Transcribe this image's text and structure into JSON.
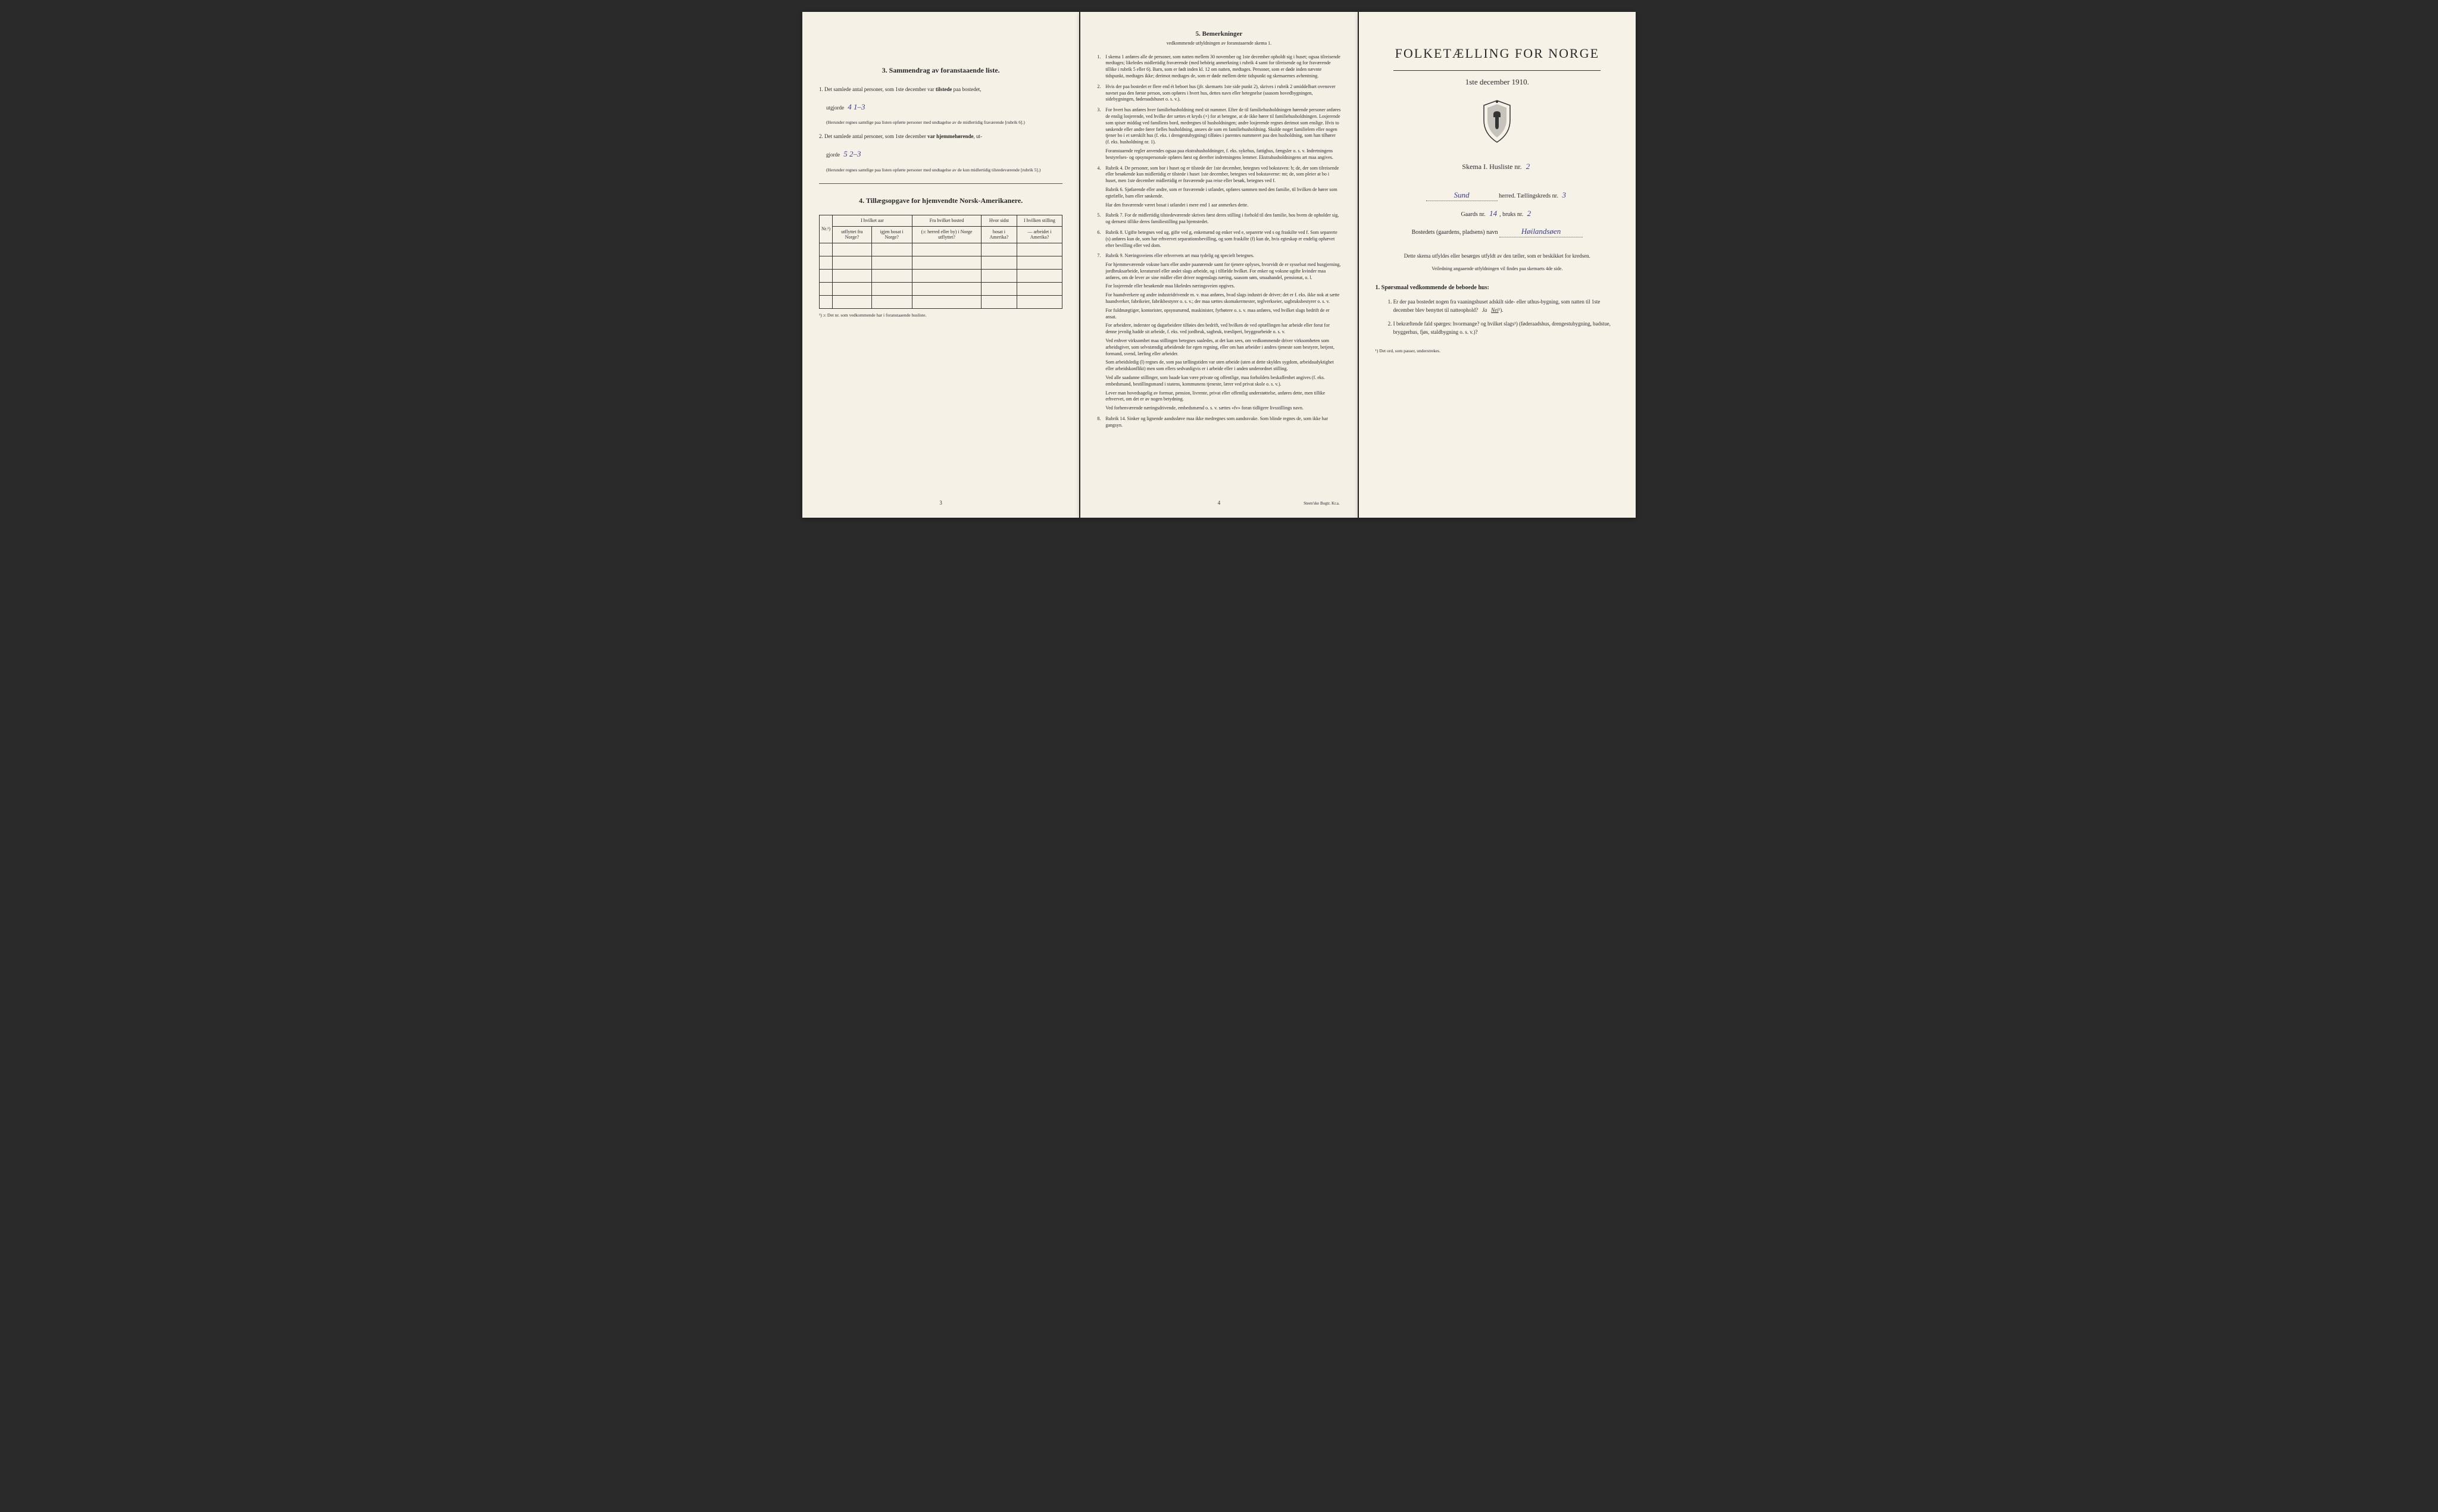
{
  "page_left": {
    "section3": {
      "title": "3.   Sammendrag av foranstaaende liste.",
      "item1_prefix": "1.  Det samlede antal personer, som 1ste december var ",
      "item1_bold": "tilstede",
      "item1_suffix": " paa bostedet,",
      "item1_line2": "utgjorde",
      "item1_value": "4     1–3",
      "item1_note": "(Herunder regnes samtlige paa listen opførte personer med undtagelse av de midlertidig fraværende [rubrik 6].)",
      "item2_prefix": "2.  Det samlede antal personer, som 1ste december ",
      "item2_bold": "var hjemmehørende",
      "item2_suffix": ", ut-",
      "item2_line2": "gjorde",
      "item2_value": "5     2–3",
      "item2_note": "(Herunder regnes samtlige paa listen opførte personer med undtagelse av de kun midlertidig tilstedeværende [rubrik 5].)"
    },
    "section4": {
      "title": "4.   Tillægsopgave for hjemvendte Norsk-Amerikanere.",
      "headers": {
        "nr": "Nr.¹)",
        "col1_top": "I hvilket aar",
        "col1a": "utflyttet fra Norge?",
        "col1b": "igjen bosat i Norge?",
        "col2_top": "Fra hvilket bosted",
        "col2": "(ɔ: herred eller by) i Norge utflyttet?",
        "col3_top": "Hvor sidst",
        "col3": "bosat i Amerika?",
        "col4_top": "I hvilken stilling",
        "col4": "— arbeidet i Amerika?"
      },
      "footnote": "¹)  ɔ: Det nr. som vedkommende har i foranstaaende husliste."
    },
    "page_number": "3"
  },
  "page_center": {
    "title": "5.   Bemerkninger",
    "subtitle": "vedkommende utfyldningen av foranstaaende skema 1.",
    "remarks": [
      {
        "num": "1.",
        "text": "I skema 1 anføres alle de personer, som natten mellem 30 november og 1ste december opholdt sig i huset; ogsaa tilreisende medtages; likeledes midlertidig fraværende (med behörig anmerkning i rubrik 4 samt for tilreisende og for fraværende tillike i rubrik 5 eller 6). Barn, som er født inden kl. 12 om natten, medtages. Personer, som er døde inden nævnte tidspunkt, medtages ikke; derimot medtages de, som er døde mellem dette tidspunkt og skemaernes avhentning."
      },
      {
        "num": "2.",
        "text": "Hvis der paa bostedet er flere end ét beboet hus (jfr. skemaets 1ste side punkt 2), skrives i rubrik 2 umiddelbart ovenover navnet paa den første person, som opføres i hvert hus, dettes navn eller betegnelse (saasom hovedbygningen, sidebygningen, føderaadshuset o. s. v.)."
      },
      {
        "num": "3.",
        "text": "For hvert hus anføres hver familiehusholdning med sit nummer. Efter de til familiehusholdningen hørende personer anføres de enslig losjerende, ved hvilke der sættes et kryds (×) for at betegne, at de ikke hører til familiehusholdningen. Losjerende som spiser middag ved familiens bord, medregnes til husholdningen; andre losjerende regnes derimot som enslige. Hvis to søskende eller andre fører fælles husholdning, ansees de som en familiehusholdning. Skulde noget familielem eller nogen tjener bo i et særskilt hus (f. eks. i drengestubygning) tilføies i parentes nummeret paa den husholdning, som han tilhører (f. eks. husholdning nr. 1).",
        "extra": "Foranstaaende regler anvendes ogsaa paa ekstrahusholdninger, f. eks. sykehus, fattighus, fængsler o. s. v. Indretningens bestyrelses- og opsynspersonale opføres først og derefter indretningens lemmer. Ekstrahusholdningens art maa angives."
      },
      {
        "num": "4.",
        "text": "Rubrik 4. De personer, som bor i huset og er tilstede der 1ste december, betegnes ved bokstaven: b; de, der som tilreisende eller besøkende kun midlertidig er tilstede i huset 1ste december, betegnes ved bokstaverne: mt; de, som pleier at bo i huset, men 1ste december midlertidig er fraværende paa reise eller besøk, betegnes ved f.",
        "extra": "Rubrik 6. Sjøfarende eller andre, som er fraværende i utlandet, opføres sammen med den familie, til hvilken de hører som egtefælle, barn eller søskende.\nHar den fraværende været bosat i utlandet i mere end 1 aar anmerkes dette."
      },
      {
        "num": "5.",
        "text": "Rubrik 7. For de midlertidig tilstedeværende skrives først deres stilling i forhold til den familie, hos hvem de opholder sig, og dernæst tillike deres familiestilling paa hjemstedet."
      },
      {
        "num": "6.",
        "text": "Rubrik 8. Ugifte betegnes ved ug, gifte ved g, enkemænd og enker ved e, separerte ved s og fraskilte ved f. Som separerte (s) anføres kun de, som har erhvervet separationsbevilling, og som fraskilte (f) kun de, hvis egteskap er endelig ophævet efter bevilling eller ved dom."
      },
      {
        "num": "7.",
        "text": "Rubrik 9. Næringsveiens eller erhvervets art maa tydelig og specielt betegnes.",
        "extra": "For hjemmeværende voksne barn eller andre paarørende samt for tjenere oplyses, hvorvidt de er sysselsat med husgjerning, jordbruksarbeide, kreaturstel eller andet slags arbeide, og i tilfælde hvilket. For enker og voksne ugifte kvinder maa anføres, om de lever av sine midler eller driver nogenslags næring, saasom søm, smaahandel, pensionat, o. l.\nFor losjerende eller besøkende maa likeledes næringsveien opgives.\nFor haandverkere og andre industridrivende m. v. maa anføres, hvad slags industri de driver; det er f. eks. ikke nok at sætte haandverker, fabrikeier, fabrikbestyrer o. s. v.; der maa sættes skomakermester, teglverkseier, sagbruksbestyrer o. s. v.\nFor fuldmægtiger, kontorister, opsynsmænd, maskinister, fyrbøtere o. s. v. maa anføres, ved hvilket slags bedrift de er ansat.\nFor arbeidere, inderster og dagarbeidere tilføies den bedrift, ved hvilken de ved optællingen har arbeide eller forut for denne jevnlig hadde sit arbeide, f. eks. ved jordbruk, sagbruk, træsliperi, bryggearbeide o. s. v.\nVed enhver virksomhet maa stillingen betegnes saaledes, at det kan sees, om vedkommende driver virksomheten som arbeidsgiver, som selvstændig arbeidende for egen regning, eller om han arbeider i andres tjeneste som bestyrer, betjent, formand, svend, lærling eller arbeider.\nSom arbeidsledig (l) regnes de, som paa tællingstiden var uten arbeide (uten at dette skyldes sygdom, arbeidsudyktighet eller arbeidskonflikt) men som ellers sedvanligvis er i arbeide eller i anden underordnet stilling.\nVed alle saadanne stillinger, som baade kan være private og offentlige, maa forholdets beskaffenhet angives (f. eks. embedsmand, bestillingsmand i statens, kommunens tjeneste, lærer ved privat skole o. s. v.).\nLever man hovedsagelig av formue, pension, livrente, privat eller offentlig understøttelse, anføres dette, men tillike erhvervet, om det er av nogen betydning.\nVed forhenværende næringsdrivende, embedsmænd o. s. v. sættes «fv» foran tidligere livsstillings navn."
      },
      {
        "num": "8.",
        "text": "Rubrik 14. Sinker og lignende aandssløve maa ikke medregnes som aandssvake.\nSom blinde regnes de, som ikke har gangsyn."
      }
    ],
    "page_number": "4",
    "printer": "Steen'ske Bogtr. Kr.a."
  },
  "page_right": {
    "title": "FOLKETÆLLING FOR NORGE",
    "date": "1ste december 1910.",
    "schema_label": "Skema I.   Husliste nr.",
    "schema_value": "2",
    "herred_value": "Sund",
    "herred_label": "herred.   Tællingskreds nr.",
    "kreds_value": "3",
    "gaards_label": "Gaards nr.",
    "gaards_value": "14",
    "bruks_label": "bruks nr.",
    "bruks_value": "2",
    "bosted_label": "Bostedets (gaardens, pladsens) navn",
    "bosted_value": "Høilandsøen",
    "instructions": "Dette skema utfyldes eller besørges utfyldt av den tæller, som er beskikket for kredsen.",
    "instructions_sub": "Veiledning angaaende utfyldningen vil findes paa skemaets 4de side.",
    "questions_title": "1.  Spørsmaal vedkommende de beboede hus:",
    "q1": "Er der paa bostedet nogen fra vaaningshuset adskilt side- eller uthus-bygning, som natten til 1ste december blev benyttet til natteophold?",
    "q1_ja": "Ja",
    "q1_nei": "Nei",
    "q1_sup": "¹).",
    "q2": "I bekræftende fald spørges: hvormange?            og hvilket slags¹) (føderaadshus, drengestubygning, badstue, bryggerhus, fjøs, staldbygning o. s. v.)?",
    "footnote": "¹) Det ord, som passer, understrekes."
  }
}
